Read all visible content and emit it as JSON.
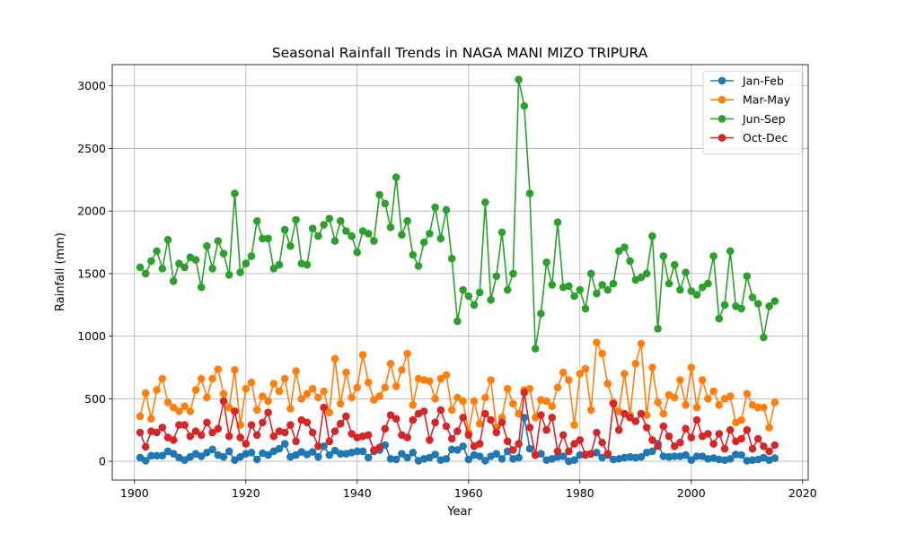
{
  "chart_data": {
    "type": "line",
    "title": "Seasonal Rainfall Trends in NAGA MANI MIZO TRIPURA",
    "xlabel": "Year",
    "ylabel": "Rainfall (mm)",
    "xlim": [
      1896,
      2021
    ],
    "ylim": [
      -150,
      3170
    ],
    "xticks": [
      1900,
      1920,
      1940,
      1960,
      1980,
      2000,
      2020
    ],
    "yticks": [
      0,
      500,
      1000,
      1500,
      2000,
      2500,
      3000
    ],
    "grid": true,
    "legend_position": "top-right",
    "x": [
      1901,
      1902,
      1903,
      1904,
      1905,
      1906,
      1907,
      1908,
      1909,
      1910,
      1911,
      1912,
      1913,
      1914,
      1915,
      1916,
      1917,
      1918,
      1919,
      1920,
      1921,
      1922,
      1923,
      1924,
      1925,
      1926,
      1927,
      1928,
      1929,
      1930,
      1931,
      1932,
      1933,
      1934,
      1935,
      1936,
      1937,
      1938,
      1939,
      1940,
      1941,
      1942,
      1943,
      1944,
      1945,
      1946,
      1947,
      1948,
      1949,
      1950,
      1951,
      1952,
      1953,
      1954,
      1955,
      1956,
      1957,
      1958,
      1959,
      1960,
      1961,
      1962,
      1963,
      1964,
      1965,
      1966,
      1967,
      1968,
      1969,
      1970,
      1971,
      1972,
      1973,
      1974,
      1975,
      1976,
      1977,
      1978,
      1979,
      1980,
      1981,
      1982,
      1983,
      1984,
      1985,
      1986,
      1987,
      1988,
      1989,
      1990,
      1991,
      1992,
      1993,
      1994,
      1995,
      1996,
      1997,
      1998,
      1999,
      2000,
      2001,
      2002,
      2003,
      2004,
      2005,
      2006,
      2007,
      2008,
      2009,
      2010,
      2011,
      2012,
      2013,
      2014,
      2015
    ],
    "series": [
      {
        "name": "Jan-Feb",
        "color": "#1f77b4",
        "values": [
          30,
          5,
          45,
          45,
          45,
          80,
          60,
          30,
          10,
          35,
          60,
          40,
          70,
          95,
          50,
          35,
          80,
          10,
          35,
          60,
          70,
          15,
          65,
          50,
          80,
          100,
          140,
          35,
          50,
          75,
          55,
          75,
          35,
          120,
          50,
          85,
          60,
          60,
          70,
          80,
          80,
          30,
          80,
          90,
          130,
          20,
          15,
          60,
          30,
          70,
          5,
          20,
          30,
          55,
          10,
          20,
          95,
          90,
          120,
          15,
          50,
          40,
          5,
          40,
          60,
          20,
          80,
          20,
          30,
          350,
          100,
          50,
          60,
          10,
          20,
          35,
          40,
          0,
          10,
          50,
          55,
          60,
          70,
          30,
          50,
          15,
          20,
          30,
          35,
          30,
          35,
          70,
          80,
          140,
          40,
          35,
          40,
          40,
          50,
          10,
          40,
          40,
          20,
          25,
          15,
          10,
          20,
          55,
          50,
          5,
          10,
          15,
          30,
          10,
          25
        ]
      },
      {
        "name": "Mar-May",
        "color": "#ff7f0e",
        "values": [
          360,
          545,
          340,
          570,
          660,
          470,
          430,
          400,
          440,
          400,
          570,
          660,
          510,
          660,
          735,
          540,
          430,
          730,
          290,
          580,
          630,
          410,
          520,
          480,
          620,
          560,
          660,
          420,
          720,
          500,
          540,
          580,
          510,
          560,
          390,
          820,
          460,
          710,
          510,
          590,
          850,
          630,
          490,
          520,
          590,
          780,
          600,
          730,
          860,
          450,
          660,
          650,
          640,
          500,
          660,
          690,
          410,
          510,
          480,
          230,
          480,
          300,
          510,
          650,
          270,
          350,
          580,
          460,
          380,
          570,
          580,
          350,
          490,
          480,
          440,
          590,
          710,
          650,
          290,
          700,
          740,
          410,
          950,
          860,
          620,
          470,
          400,
          700,
          370,
          780,
          940,
          370,
          750,
          470,
          380,
          530,
          510,
          650,
          450,
          750,
          430,
          650,
          500,
          560,
          450,
          500,
          520,
          310,
          330,
          540,
          450,
          430,
          430,
          270,
          470
        ]
      },
      {
        "name": "Jun-Sep",
        "color": "#2ca02c",
        "values": [
          1550,
          1500,
          1600,
          1680,
          1540,
          1770,
          1440,
          1580,
          1550,
          1630,
          1610,
          1390,
          1720,
          1540,
          1760,
          1660,
          1490,
          2140,
          1510,
          1580,
          1640,
          1920,
          1780,
          1780,
          1540,
          1570,
          1850,
          1720,
          1930,
          1580,
          1570,
          1860,
          1800,
          1890,
          1940,
          1760,
          1920,
          1840,
          1800,
          1670,
          1840,
          1820,
          1760,
          2130,
          2060,
          1870,
          2270,
          1810,
          1920,
          1650,
          1560,
          1750,
          1820,
          2030,
          1780,
          2010,
          1620,
          1120,
          1370,
          1320,
          1250,
          1350,
          2070,
          1290,
          1480,
          1830,
          1370,
          1500,
          3050,
          2840,
          2140,
          900,
          1180,
          1590,
          1410,
          1910,
          1390,
          1400,
          1320,
          1370,
          1220,
          1500,
          1340,
          1410,
          1370,
          1420,
          1680,
          1710,
          1600,
          1450,
          1470,
          1500,
          1800,
          1060,
          1640,
          1420,
          1570,
          1370,
          1510,
          1360,
          1330,
          1390,
          1420,
          1640,
          1140,
          1250,
          1680,
          1240,
          1220,
          1480,
          1310,
          1260,
          990,
          1240,
          1280
        ]
      },
      {
        "name": "Oct-Dec",
        "color": "#d62728",
        "values": [
          230,
          115,
          240,
          230,
          270,
          190,
          170,
          290,
          290,
          200,
          240,
          210,
          310,
          230,
          260,
          480,
          200,
          400,
          190,
          140,
          290,
          210,
          310,
          390,
          200,
          240,
          230,
          290,
          160,
          330,
          310,
          230,
          120,
          430,
          160,
          240,
          300,
          360,
          220,
          190,
          200,
          210,
          90,
          110,
          260,
          370,
          340,
          210,
          190,
          330,
          380,
          400,
          170,
          310,
          410,
          280,
          180,
          240,
          350,
          210,
          120,
          140,
          380,
          330,
          230,
          310,
          160,
          90,
          140,
          550,
          270,
          50,
          370,
          250,
          350,
          80,
          210,
          80,
          140,
          170,
          50,
          60,
          230,
          150,
          60,
          460,
          250,
          380,
          350,
          320,
          380,
          270,
          170,
          120,
          280,
          200,
          120,
          150,
          260,
          190,
          330,
          200,
          220,
          140,
          220,
          100,
          250,
          160,
          180,
          250,
          100,
          180,
          120,
          80,
          130
        ]
      }
    ]
  }
}
